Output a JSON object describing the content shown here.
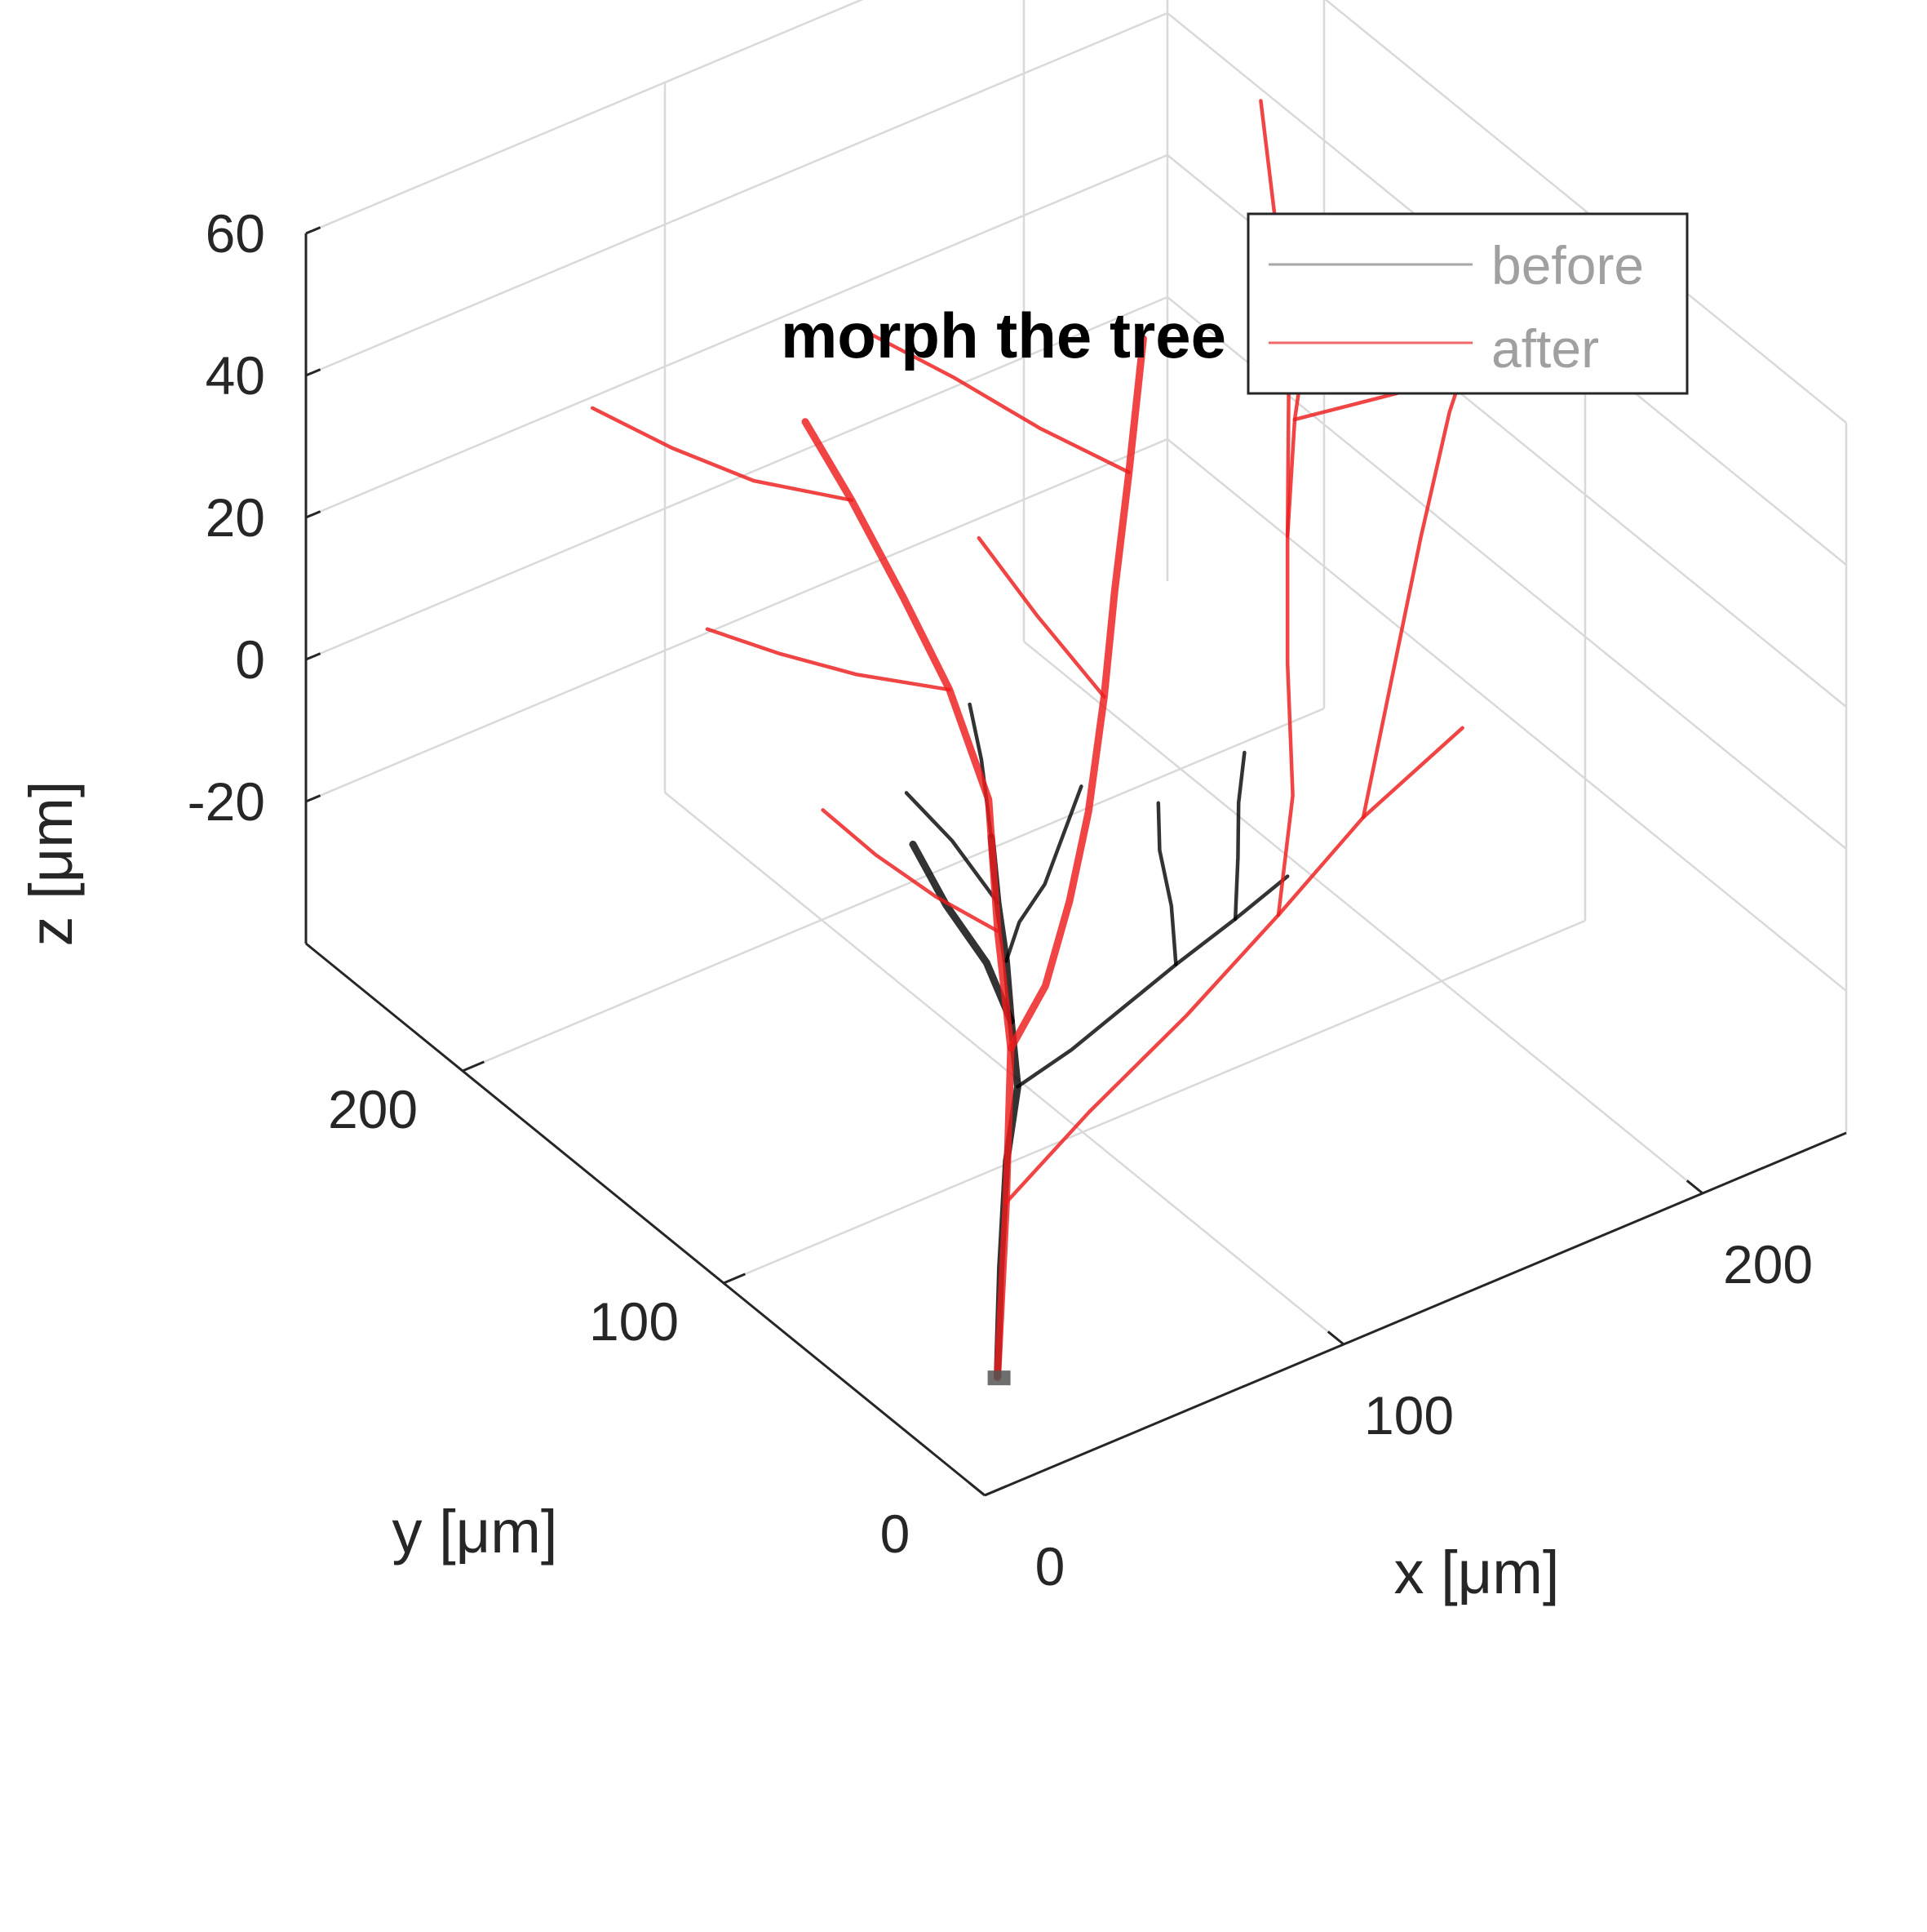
{
  "chart_data": {
    "type": "line",
    "title": "morph the tree",
    "xlabel": "x [μm]",
    "ylabel": "y [μm]",
    "zlabel": "z [μm]",
    "xlim": [
      0,
      240
    ],
    "ylim": [
      0,
      260
    ],
    "zlim": [
      -40,
      60
    ],
    "xticks": [
      "0",
      "100",
      "200"
    ],
    "yticks": [
      "0",
      "100",
      "200"
    ],
    "zticks": [
      "60",
      "40",
      "20",
      "0",
      "-20"
    ],
    "grid": true,
    "view": "3d",
    "legend": {
      "position": "top-right"
    },
    "series": [
      {
        "name": "before",
        "color": "#000000",
        "legend_color": "#a6a6a6",
        "branches": [
          [
            [
              13,
              13,
              -30
            ],
            [
              19,
              20,
              -18
            ],
            [
              25,
              26,
              -6
            ],
            [
              31,
              30,
              2
            ],
            [
              35,
              38,
              8
            ],
            [
              38,
              44,
              14
            ],
            [
              40,
              50,
              20
            ],
            [
              44,
              58,
              26
            ]
          ],
          [
            [
              35,
              38,
              8
            ],
            [
              34,
              46,
              14
            ],
            [
              30,
              56,
              20
            ],
            [
              28,
              66,
              26
            ]
          ],
          [
            [
              38,
              44,
              14
            ],
            [
              46,
              50,
              16
            ],
            [
              56,
              54,
              18
            ],
            [
              64,
              58,
              22
            ],
            [
              72,
              62,
              26
            ]
          ],
          [
            [
              31,
              30,
              2
            ],
            [
              46,
              30,
              4
            ],
            [
              62,
              32,
              6
            ],
            [
              78,
              34,
              8
            ],
            [
              96,
              36,
              10
            ],
            [
              112,
              38,
              12
            ]
          ],
          [
            [
              78,
              34,
              8
            ],
            [
              84,
              44,
              12
            ],
            [
              88,
              54,
              16
            ],
            [
              92,
              60,
              20
            ]
          ],
          [
            [
              96,
              36,
              10
            ],
            [
              104,
              46,
              14
            ],
            [
              110,
              54,
              18
            ],
            [
              116,
              60,
              22
            ]
          ],
          [
            [
              44,
              58,
              26
            ],
            [
              50,
              70,
              32
            ],
            [
              54,
              80,
              36
            ]
          ],
          [
            [
              40,
              50,
              20
            ],
            [
              36,
              62,
              26
            ],
            [
              32,
              74,
              30
            ]
          ]
        ]
      },
      {
        "name": "after",
        "color": "#ee1c1c",
        "legend_color": "#f06868",
        "branches": [
          [
            [
              13,
              13,
              -30
            ],
            [
              22,
              22,
              -10
            ],
            [
              32,
              34,
              6
            ],
            [
              40,
              50,
              16
            ],
            [
              52,
              70,
              26
            ],
            [
              60,
              96,
              32
            ],
            [
              66,
              122,
              36
            ],
            [
              72,
              150,
              40
            ],
            [
              78,
              176,
              42
            ]
          ],
          [
            [
              32,
              34,
              6
            ],
            [
              46,
              40,
              10
            ],
            [
              60,
              50,
              16
            ],
            [
              74,
              62,
              22
            ],
            [
              90,
              78,
              30
            ],
            [
              106,
              96,
              36
            ],
            [
              126,
              118,
              42
            ],
            [
              146,
              140,
              50
            ]
          ],
          [
            [
              22,
              22,
              -10
            ],
            [
              48,
              26,
              -4
            ],
            [
              78,
              30,
              2
            ],
            [
              108,
              36,
              8
            ],
            [
              136,
              42,
              14
            ],
            [
              168,
              48,
              18
            ]
          ],
          [
            [
              108,
              36,
              8
            ],
            [
              128,
              58,
              14
            ],
            [
              144,
              82,
              22
            ],
            [
              160,
              104,
              30
            ],
            [
              178,
              126,
              36
            ],
            [
              200,
              150,
              40
            ]
          ],
          [
            [
              136,
              42,
              14
            ],
            [
              160,
              64,
              22
            ],
            [
              184,
              86,
              30
            ],
            [
              208,
              108,
              36
            ],
            [
              236,
              130,
              42
            ]
          ],
          [
            [
              60,
              96,
              32
            ],
            [
              40,
              104,
              36
            ],
            [
              24,
              112,
              40
            ],
            [
              10,
              120,
              44
            ]
          ],
          [
            [
              72,
              150,
              40
            ],
            [
              52,
              160,
              44
            ],
            [
              38,
              172,
              48
            ],
            [
              26,
              186,
              52
            ]
          ],
          [
            [
              160,
              104,
              30
            ],
            [
              172,
              120,
              46
            ],
            [
              180,
              136,
              60
            ],
            [
              186,
              150,
              72
            ]
          ],
          [
            [
              126,
              118,
              42
            ],
            [
              110,
              130,
              48
            ],
            [
              96,
              144,
              54
            ],
            [
              84,
              160,
              58
            ]
          ],
          [
            [
              90,
              78,
              30
            ],
            [
              80,
              90,
              40
            ],
            [
              74,
              104,
              48
            ]
          ],
          [
            [
              178,
              126,
              36
            ],
            [
              196,
              112,
              40
            ],
            [
              214,
              100,
              44
            ]
          ],
          [
            [
              40,
              50,
              16
            ],
            [
              30,
              60,
              20
            ],
            [
              22,
              72,
              24
            ],
            [
              16,
              84,
              28
            ]
          ]
        ]
      }
    ]
  },
  "colors": {
    "before_line": "#000000",
    "after_line": "#ee1c1c",
    "grid": "#d9d9d9",
    "axis": "#262626"
  }
}
